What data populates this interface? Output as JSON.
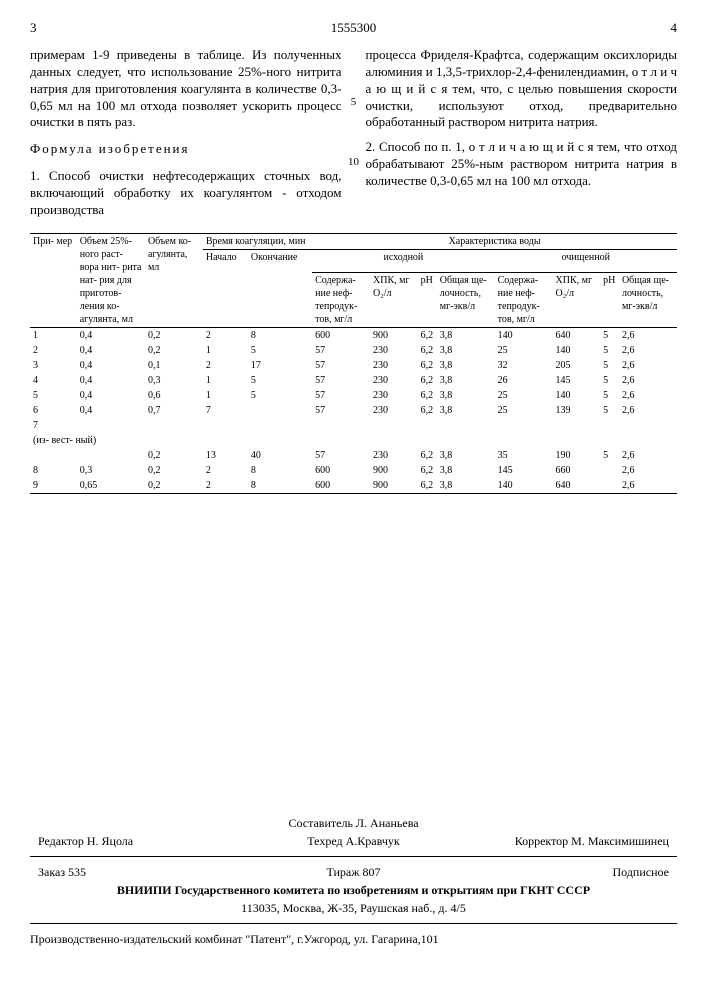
{
  "header": {
    "page_left": "3",
    "patent_number": "1555300",
    "page_right": "4"
  },
  "left_col": {
    "p1": "примерам 1-9 приведены в таблице. Из полученных данных следует, что использование 25%-ного нитрита натрия для приготовления коагулянта в количестве 0,3-0,65 мл на 100 мл отхода позволяет ускорить процесс очистки в пять раз.",
    "formula_title": "Формула изобретения",
    "p2": "1. Способ очистки нефтесодержащих сточных вод, включающий обработку их коагулянтом - отходом производства"
  },
  "right_col": {
    "p1": "процесса Фриделя-Крафтса, содержащим оксихлориды алюминия и 1,3,5-трихлор-2,4-фенилендиамин, о т л и ч а ю щ и й с я  тем, что, с целью повышения скорости очистки, используют отход, предварительно обработанный раствором нитрита натрия.",
    "p2": "2. Способ по п. 1, о т л и ч а ю щ и й с я  тем, что отход обрабатывают 25%-ным раствором нитрита натрия в количестве 0,3-0,65 мл на 100 мл отхода."
  },
  "line_numbers": {
    "five": "5",
    "ten": "10"
  },
  "table": {
    "headers": {
      "primer": "При-\nмер",
      "vol25": "Объем 25%-ного раст-\nвора нит-\nрита нат-\nрия для\nприготов-\nления ко-\nагулянта, мл",
      "volko": "Объем ко-\nагулянта,\nмл",
      "time": "Время коагуляции,\nмин",
      "time_start": "Начало",
      "time_end": "Окончание",
      "char": "Характеристика воды",
      "ish": "исходной",
      "och": "очищенной",
      "sod": "Содержа-\nние неф-\nтепродук-\nтов, мг/л",
      "hpk": "ХПК, мг\nO₂/л",
      "ph": "pH",
      "shel": "Общая ще-\nлочность,\nмг-экв/л"
    },
    "note_row": "(из-\nвест-\nный)",
    "rows": [
      {
        "n": "1",
        "v25": "0,4",
        "vk": "0,2",
        "ts": "2",
        "te": "8",
        "s1": "600",
        "h1": "900",
        "p1": "6,2",
        "sh1": "3,8",
        "s2": "140",
        "h2": "640",
        "p2": "5",
        "sh2": "2,6"
      },
      {
        "n": "2",
        "v25": "0,4",
        "vk": "0,2",
        "ts": "1",
        "te": "5",
        "s1": "57",
        "h1": "230",
        "p1": "6,2",
        "sh1": "3,8",
        "s2": "25",
        "h2": "140",
        "p2": "5",
        "sh2": "2,6"
      },
      {
        "n": "3",
        "v25": "0,4",
        "vk": "0,1",
        "ts": "2",
        "te": "17",
        "s1": "57",
        "h1": "230",
        "p1": "6,2",
        "sh1": "3,8",
        "s2": "32",
        "h2": "205",
        "p2": "5",
        "sh2": "2,6"
      },
      {
        "n": "4",
        "v25": "0,4",
        "vk": "0,3",
        "ts": "1",
        "te": "5",
        "s1": "57",
        "h1": "230",
        "p1": "6,2",
        "sh1": "3,8",
        "s2": "26",
        "h2": "145",
        "p2": "5",
        "sh2": "2,6"
      },
      {
        "n": "5",
        "v25": "0,4",
        "vk": "0,6",
        "ts": "1",
        "te": "5",
        "s1": "57",
        "h1": "230",
        "p1": "6,2",
        "sh1": "3,8",
        "s2": "25",
        "h2": "140",
        "p2": "5",
        "sh2": "2,6"
      },
      {
        "n": "6",
        "v25": "0,4",
        "vk": "0,7",
        "ts": "7",
        "te": "",
        "s1": "57",
        "h1": "230",
        "p1": "6,2",
        "sh1": "3,8",
        "s2": "25",
        "h2": "139",
        "p2": "5",
        "sh2": "2,6"
      },
      {
        "n": "7",
        "v25": "",
        "vk": "",
        "ts": "",
        "te": "",
        "s1": "",
        "h1": "",
        "p1": "",
        "sh1": "",
        "s2": "",
        "h2": "",
        "p2": "",
        "sh2": ""
      },
      {
        "n": "",
        "v25": "",
        "vk": "0,2",
        "ts": "13",
        "te": "40",
        "s1": "57",
        "h1": "230",
        "p1": "6,2",
        "sh1": "3,8",
        "s2": "35",
        "h2": "190",
        "p2": "5",
        "sh2": "2,6"
      },
      {
        "n": "8",
        "v25": "0,3",
        "vk": "0,2",
        "ts": "2",
        "te": "8",
        "s1": "600",
        "h1": "900",
        "p1": "6,2",
        "sh1": "3,8",
        "s2": "145",
        "h2": "660",
        "p2": "",
        "sh2": "2,6"
      },
      {
        "n": "9",
        "v25": "0,65",
        "vk": "0,2",
        "ts": "2",
        "te": "8",
        "s1": "600",
        "h1": "900",
        "p1": "6,2",
        "sh1": "3,8",
        "s2": "140",
        "h2": "640",
        "p2": "",
        "sh2": "2,6"
      }
    ],
    "style": {
      "border_color": "#000000",
      "font_size": 10,
      "header_font_size": 10
    }
  },
  "footer": {
    "compiler": "Составитель Л. Ананьева",
    "editor": "Редактор Н. Яцола",
    "tech": "Техред А.Кравчук",
    "corrector": "Корректор М. Максимишинец",
    "order": "Заказ 535",
    "tirazh": "Тираж 807",
    "podpisnoe": "Подписное",
    "vniipi": "ВНИИПИ Государственного комитета по изобретениям и открытиям при ГКНТ СССР",
    "address1": "113035, Москва, Ж-35, Раушская наб., д. 4/5",
    "address2": "Производственно-издательский комбинат \"Патент\", г.Ужгород, ул. Гагарина,101"
  }
}
